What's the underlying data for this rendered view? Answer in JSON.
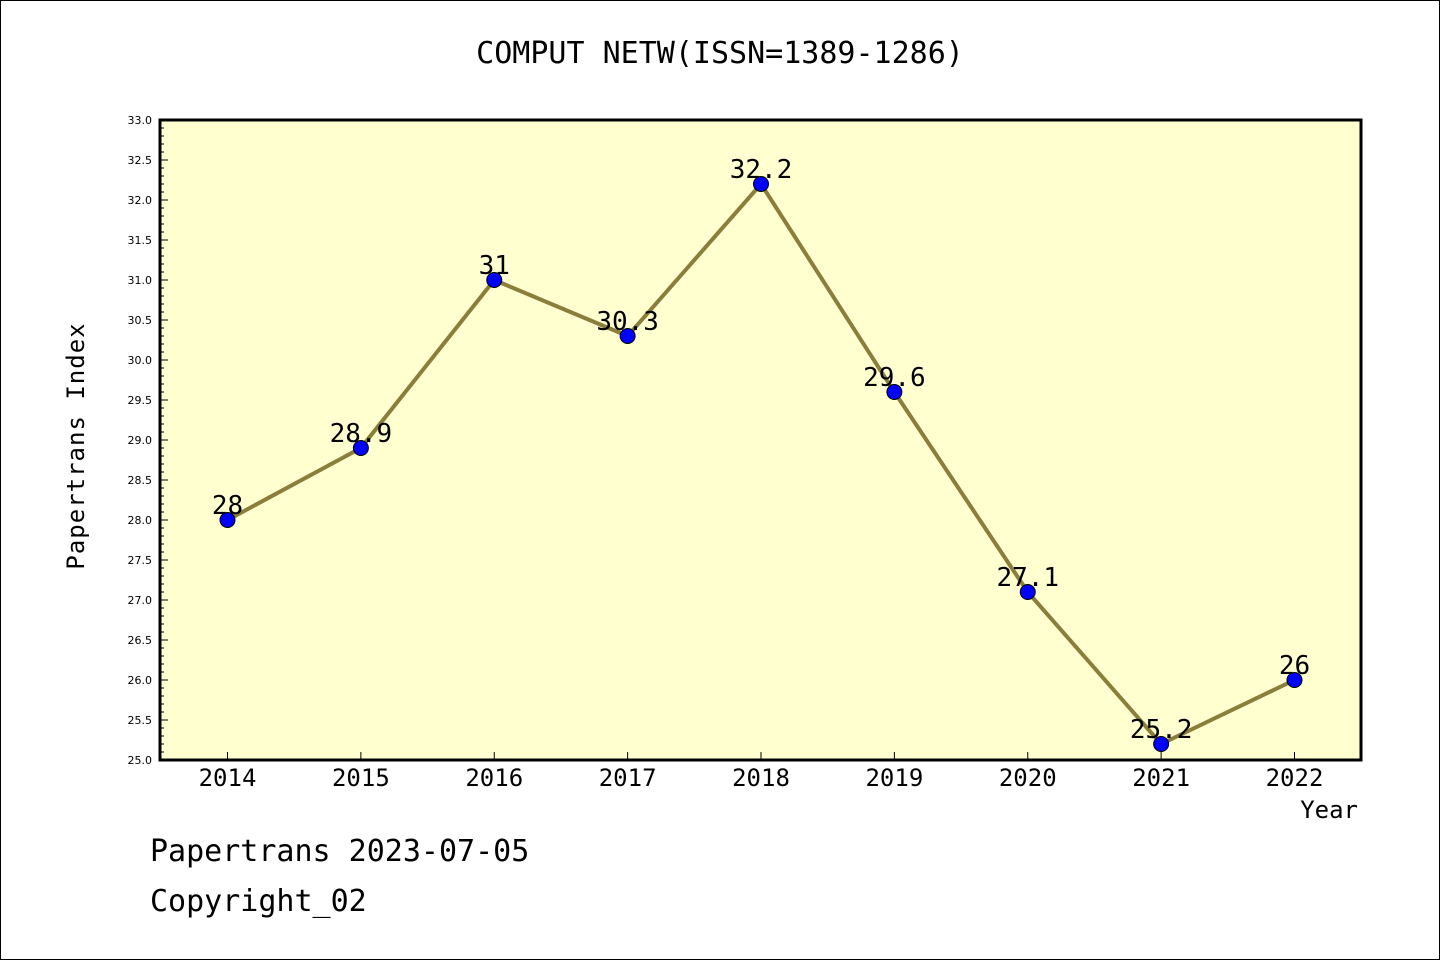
{
  "chart_data": {
    "type": "line",
    "title": "COMPUT NETW(ISSN=1389-1286)",
    "xlabel": "Year",
    "ylabel": "Papertrans Index",
    "x": [
      "2014",
      "2015",
      "2016",
      "2017",
      "2018",
      "2019",
      "2020",
      "2021",
      "2022"
    ],
    "series": [
      {
        "values": [
          28,
          28.9,
          31,
          30.3,
          32.2,
          29.6,
          27.1,
          25.2,
          26
        ]
      }
    ],
    "data_labels": [
      "28",
      "28.9",
      "31",
      "30.3",
      "32.2",
      "29.6",
      "27.1",
      "25.2",
      "26"
    ],
    "ylim": [
      25.0,
      33.0
    ],
    "y_ticks": [
      "25.0",
      "25.5",
      "26.0",
      "26.5",
      "27.0",
      "27.5",
      "28.0",
      "28.5",
      "29.0",
      "29.5",
      "30.0",
      "30.5",
      "31.0",
      "31.5",
      "32.0",
      "32.5",
      "33.0"
    ],
    "grid": false,
    "colors": {
      "plot_background": "#ffffd0",
      "line": "#8b7d3a",
      "marker": "#0000ff"
    }
  },
  "footer": {
    "line1": "Papertrans 2023-07-05",
    "line2": "Copyright_02"
  }
}
